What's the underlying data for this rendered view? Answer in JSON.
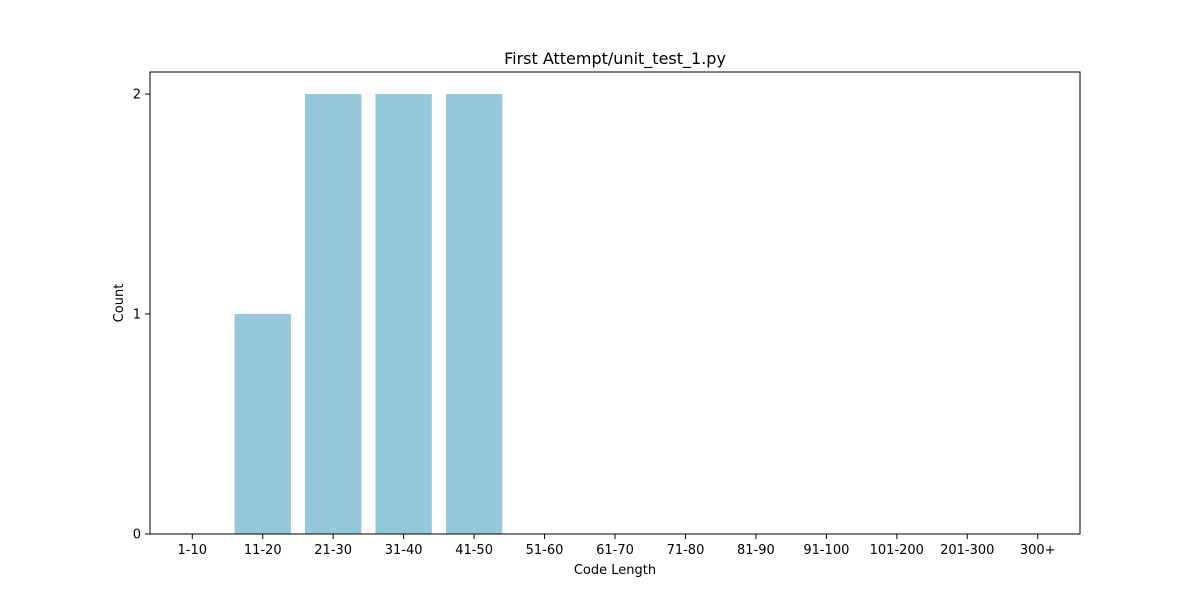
{
  "chart_data": {
    "type": "bar",
    "title": "First Attempt/unit_test_1.py",
    "xlabel": "Code Length",
    "ylabel": "Count",
    "categories": [
      "1-10",
      "11-20",
      "21-30",
      "31-40",
      "41-50",
      "51-60",
      "61-70",
      "71-80",
      "81-90",
      "91-100",
      "101-200",
      "201-300",
      "300+"
    ],
    "values": [
      0,
      1,
      2,
      2,
      2,
      0,
      0,
      0,
      0,
      0,
      0,
      0,
      0
    ],
    "ylim": [
      0,
      2.1
    ],
    "yticks": [
      0,
      1,
      2
    ],
    "grid": false,
    "legend": "none",
    "bar_color": "#96c8dc"
  }
}
